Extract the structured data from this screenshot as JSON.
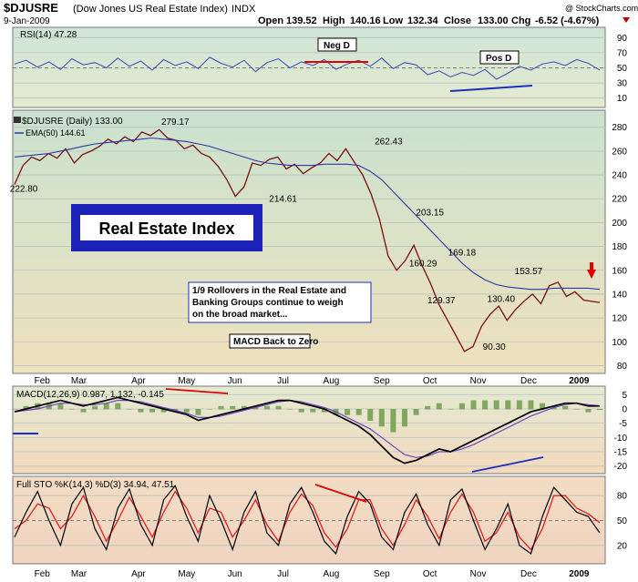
{
  "header": {
    "symbol": "$DJUSRE",
    "name": "(Dow Jones US Real Estate Index)",
    "exchange": "INDX",
    "date": "9-Jan-2009",
    "open_label": "Open",
    "open": "139.52",
    "high_label": "High",
    "high": "140.16",
    "low_label": "Low",
    "low": "132.34",
    "close_label": "Close",
    "close": "133.00",
    "chg_label": "Chg",
    "chg": "-6.52 (-4.67%)",
    "credit": "@ StockCharts.com"
  },
  "colors": {
    "accent_red": "#e00000",
    "blue": "#1d2fbf",
    "title_box": "#1c21b8"
  },
  "chart_data": [
    {
      "type": "line",
      "panel": "rsi",
      "title": "RSI(14) 47.28",
      "yticks": [
        10,
        30,
        50,
        70,
        90
      ],
      "ylim": [
        0,
        100
      ],
      "x": [
        0,
        5,
        10,
        15,
        20,
        25,
        30,
        35,
        40,
        45,
        50,
        55,
        60,
        65,
        70,
        75,
        80,
        85,
        90,
        95,
        100,
        105,
        110,
        115,
        120,
        125,
        130,
        135,
        140,
        145,
        150,
        155,
        160,
        165,
        170,
        175,
        180,
        185,
        190,
        195,
        200,
        205,
        210,
        215,
        220,
        225,
        230,
        235,
        240,
        245,
        250,
        255
      ],
      "values": [
        55,
        60,
        51,
        58,
        48,
        62,
        54,
        57,
        50,
        63,
        52,
        59,
        47,
        61,
        53,
        58,
        49,
        64,
        56,
        51,
        60,
        45,
        57,
        62,
        50,
        58,
        53,
        61,
        48,
        55,
        60,
        52,
        63,
        49,
        57,
        54,
        41,
        46,
        38,
        44,
        40,
        48,
        35,
        43,
        52,
        47,
        55,
        58,
        53,
        61,
        56,
        47
      ],
      "annotations": [
        "Neg D",
        "Pos D"
      ]
    },
    {
      "type": "line",
      "panel": "price",
      "title": "$DJUSRE (Daily) 133.00",
      "series": [
        {
          "name": "EMA(50) 144.61",
          "values": [
            255,
            256,
            257,
            258,
            260,
            262,
            264,
            266,
            267,
            268,
            269,
            270,
            271,
            270,
            269,
            268,
            266,
            264,
            261,
            258,
            255,
            252,
            250,
            249,
            248,
            248,
            248,
            249,
            249,
            249,
            248,
            243,
            236,
            226,
            216,
            206,
            196,
            186,
            176,
            166,
            158,
            152,
            148,
            146,
            145,
            144,
            144,
            145,
            145,
            145,
            145,
            144
          ]
        }
      ],
      "x_labels": [
        "Feb",
        "Mar",
        "Apr",
        "May",
        "Jun",
        "Jul",
        "Aug",
        "Sep",
        "Oct",
        "Nov",
        "Dec",
        "2009"
      ],
      "x_label_pos": [
        12,
        28,
        54,
        75,
        96,
        117,
        138,
        160,
        181,
        202,
        224,
        246
      ],
      "yticks": [
        80,
        100,
        120,
        140,
        160,
        180,
        200,
        220,
        240,
        260,
        280
      ],
      "ylim": [
        75,
        292
      ],
      "price": [
        232,
        248,
        255,
        252,
        258,
        254,
        262,
        250,
        257,
        260,
        264,
        270,
        266,
        272,
        268,
        276,
        273,
        278,
        271,
        269,
        262,
        265,
        258,
        255,
        247,
        236,
        222,
        230,
        250,
        248,
        253,
        255,
        245,
        249,
        241,
        246,
        250,
        258,
        252,
        262,
        251,
        240,
        224,
        203,
        172,
        160,
        168,
        181,
        164,
        149,
        131,
        118,
        105,
        92,
        96,
        113,
        123,
        130,
        118,
        127,
        134,
        140,
        132,
        147,
        150,
        138,
        142,
        135,
        133
      ],
      "price_x": [
        0,
        3.7,
        7.4,
        11,
        14.8,
        18.5,
        22.2,
        26,
        29.6,
        33.3,
        37,
        40.7,
        44.4,
        48,
        51.8,
        55.5,
        59.2,
        63,
        66.6,
        70.3,
        74,
        77.7,
        81.4,
        85,
        88.8,
        92.5,
        96.2,
        100,
        103.6,
        107.3,
        111,
        114.7,
        118.4,
        122,
        125.8,
        129.5,
        133.2,
        137,
        140.6,
        144.3,
        148,
        151.7,
        155.4,
        159,
        162.8,
        166.5,
        170.2,
        174,
        177.6,
        181.3,
        185,
        188.7,
        192.4,
        196,
        199.8,
        203.5,
        207.2,
        211,
        214.6,
        218.3,
        222,
        225.7,
        229.4,
        233,
        236.8,
        240.5,
        244.2,
        248,
        255
      ],
      "data_labels": [
        {
          "text": "222.80",
          "x": 4,
          "y": 222.8
        },
        {
          "text": "279.17",
          "x": 70,
          "y": 279.17
        },
        {
          "text": "214.61",
          "x": 117,
          "y": 214.61
        },
        {
          "text": "262.43",
          "x": 163,
          "y": 262.43
        },
        {
          "text": "203.15",
          "x": 181,
          "y": 203.15
        },
        {
          "text": "160.29",
          "x": 178,
          "y": 160.29
        },
        {
          "text": "169.18",
          "x": 195,
          "y": 169.18
        },
        {
          "text": "129.37",
          "x": 186,
          "y": 129.37
        },
        {
          "text": "130.40",
          "x": 212,
          "y": 130.4
        },
        {
          "text": "153.57",
          "x": 224,
          "y": 153.57
        },
        {
          "text": "90.30",
          "x": 209,
          "y": 90.3
        }
      ],
      "annotations": {
        "title_box": "Real Estate Index",
        "note": "1/9  Rollovers in the Real Estate and Banking Groups continue to weigh on the broad market...",
        "macd_note": "MACD Back to Zero"
      }
    },
    {
      "type": "line",
      "panel": "macd",
      "title": "MACD(12,26,9) 0.987, 1.132, -0.145",
      "yticks": [
        5,
        0,
        -5,
        -10,
        -15,
        -20
      ],
      "ylim": [
        -22,
        7
      ],
      "series": [
        {
          "name": "MACD",
          "values": [
            -1,
            0,
            1,
            2,
            3,
            2,
            1,
            2,
            3,
            4,
            3,
            2,
            1,
            0,
            -1,
            -2,
            -4,
            -3,
            -2,
            -1,
            0,
            1,
            2,
            3,
            3,
            2,
            1,
            0,
            -2,
            -4,
            -6,
            -9,
            -13,
            -17,
            -19,
            -18,
            -16,
            -14,
            -15,
            -13,
            -11,
            -9,
            -7,
            -5,
            -3,
            -1,
            0,
            1,
            2,
            2,
            1,
            1
          ]
        },
        {
          "name": "Signal",
          "values": [
            -1,
            -0.5,
            0,
            1,
            2,
            2,
            1.5,
            1.5,
            2,
            3,
            3,
            2.5,
            1.5,
            0.5,
            -0.5,
            -1.5,
            -3,
            -3,
            -2.5,
            -1.5,
            -0.5,
            0.5,
            1.5,
            2.5,
            3,
            2.5,
            1.5,
            0.5,
            -1,
            -3,
            -5,
            -7,
            -10,
            -13,
            -16,
            -17,
            -16.5,
            -15,
            -15,
            -14,
            -12.5,
            -10.5,
            -8.5,
            -6.5,
            -4.5,
            -2.5,
            -1,
            0.5,
            1.5,
            2,
            1.5,
            1.1
          ]
        }
      ]
    },
    {
      "type": "line",
      "panel": "stochastic",
      "title": "Full STO %K(14,3) %D(3) 34.94, 47.51",
      "yticks": [
        80,
        50,
        20
      ],
      "ylim": [
        0,
        100
      ],
      "series": [
        {
          "name": "%K",
          "values": [
            30,
            60,
            85,
            50,
            20,
            70,
            90,
            40,
            15,
            65,
            88,
            45,
            20,
            75,
            92,
            55,
            25,
            80,
            50,
            15,
            60,
            85,
            35,
            20,
            70,
            90,
            60,
            25,
            10,
            55,
            85,
            70,
            30,
            15,
            60,
            82,
            45,
            20,
            75,
            88,
            50,
            15,
            40,
            70,
            20,
            10,
            55,
            90,
            75,
            60,
            55,
            35
          ]
        },
        {
          "name": "%D",
          "values": [
            40,
            50,
            70,
            65,
            40,
            55,
            80,
            55,
            25,
            50,
            78,
            55,
            30,
            60,
            85,
            65,
            35,
            65,
            60,
            30,
            50,
            75,
            45,
            25,
            60,
            82,
            68,
            35,
            18,
            40,
            75,
            75,
            40,
            20,
            45,
            75,
            55,
            28,
            60,
            82,
            60,
            25,
            35,
            60,
            30,
            15,
            40,
            80,
            80,
            65,
            58,
            47.5
          ]
        }
      ]
    }
  ]
}
